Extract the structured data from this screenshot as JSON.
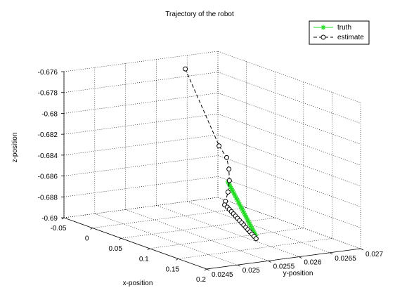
{
  "chart_data": {
    "type": "line3d",
    "title": "Trajectory of the robot",
    "xlabel": "x-position",
    "ylabel": "y-position",
    "zlabel": "z-position",
    "xlim": [
      -0.05,
      0.2
    ],
    "ylim": [
      0.0245,
      0.027
    ],
    "zlim": [
      -0.69,
      -0.676
    ],
    "x_ticks": [
      "-0.05",
      "0",
      "0.05",
      "0.1",
      "0.15",
      "0.2"
    ],
    "y_ticks": [
      "0.0245",
      "0.025",
      "0.0255",
      "0.026",
      "0.0265",
      "0.027"
    ],
    "z_ticks": [
      "-0.676",
      "-0.678",
      "-0.68",
      "-0.682",
      "-0.684",
      "-0.686",
      "-0.688",
      "-0.69"
    ],
    "grid": true,
    "legend": {
      "position": "top-right",
      "entries": [
        {
          "label": "truth",
          "color": "#22dd22",
          "marker": "asterisk",
          "line": "solid"
        },
        {
          "label": "estimate",
          "color": "#000000",
          "marker": "circle",
          "line": "dashed"
        }
      ]
    },
    "series": [
      {
        "name": "truth",
        "color": "#22dd22",
        "marker": "asterisk",
        "line": "solid",
        "x": [
          0.0,
          0.0085,
          0.017,
          0.0255,
          0.034,
          0.0425,
          0.051,
          0.0595,
          0.068,
          0.0765,
          0.085,
          0.0935,
          0.102,
          0.1105,
          0.119,
          0.1275,
          0.136,
          0.1445,
          0.153,
          0.1615,
          0.17,
          0.1785,
          0.187,
          0.1955,
          0.204
        ],
        "y": [
          0.0267,
          0.02664,
          0.02658,
          0.02652,
          0.02646,
          0.0264,
          0.02634,
          0.02628,
          0.02622,
          0.02616,
          0.0261,
          0.02604,
          0.02598,
          0.02592,
          0.02586,
          0.0258,
          0.02574,
          0.02568,
          0.02562,
          0.02556,
          0.0255,
          0.02544,
          0.02538,
          0.02532,
          0.02526
        ],
        "z": [
          -0.6873,
          -0.6873,
          -0.6873,
          -0.6873,
          -0.6873,
          -0.6873,
          -0.6873,
          -0.6873,
          -0.6873,
          -0.6873,
          -0.6873,
          -0.6873,
          -0.6873,
          -0.6873,
          -0.6873,
          -0.6873,
          -0.6873,
          -0.6873,
          -0.6873,
          -0.6873,
          -0.6873,
          -0.6873,
          -0.6873,
          -0.6873,
          -0.6873
        ]
      },
      {
        "name": "estimate",
        "color": "#000000",
        "marker": "circle",
        "line": "dashed",
        "x": [
          -0.01,
          0.02,
          0.028,
          0.033,
          0.037,
          0.04,
          0.042,
          0.047,
          0.056,
          0.065,
          0.074,
          0.083,
          0.092,
          0.101,
          0.11,
          0.119,
          0.128,
          0.137,
          0.146,
          0.155,
          0.164,
          0.173,
          0.182
        ],
        "y": [
          0.0261,
          0.02637,
          0.02642,
          0.02641,
          0.02638,
          0.02633,
          0.02627,
          0.02621,
          0.02617,
          0.02612,
          0.02607,
          0.02602,
          0.02597,
          0.02592,
          0.02587,
          0.02582,
          0.02577,
          0.02572,
          0.02567,
          0.02562,
          0.02557,
          0.02552,
          0.02547
        ],
        "z": [
          -0.6762,
          -0.6832,
          -0.6842,
          -0.6852,
          -0.6862,
          -0.6872,
          -0.688,
          -0.6882,
          -0.6882,
          -0.6882,
          -0.6882,
          -0.6882,
          -0.6882,
          -0.6882,
          -0.6882,
          -0.6882,
          -0.6882,
          -0.6882,
          -0.6882,
          -0.6882,
          -0.6882,
          -0.6882,
          -0.6882
        ]
      }
    ]
  }
}
